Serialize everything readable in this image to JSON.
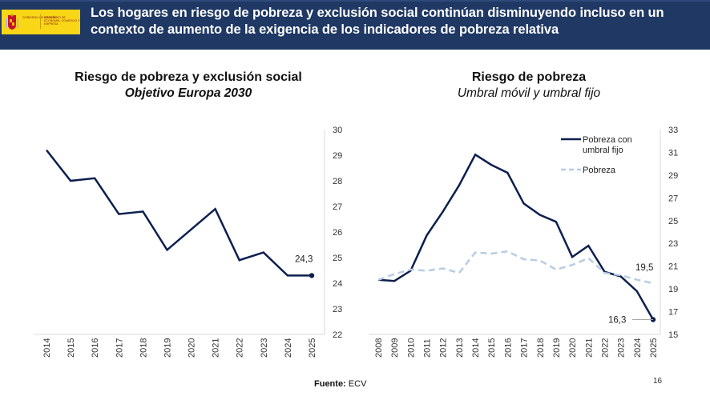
{
  "header": {
    "title": "Los hogares en riesgo de pobreza y exclusión social continúan disminuyendo incluso en un contexto de aumento de la exigencia de los indicadores de pobreza relativa",
    "logo": {
      "line1": "GOBIERNO DE ESPAÑA",
      "line2": "MINISTERIO DE ECONOMÍA, COMERCIO Y EMPRESA"
    },
    "colors": {
      "background": "#1f3864",
      "logo_yellow": "#f9d616"
    }
  },
  "footer": {
    "source_label": "Fuente:",
    "source_value": "ECV",
    "page_number": "16"
  },
  "chart_data": [
    {
      "type": "line",
      "title": "Riesgo de pobreza y exclusión social",
      "subtitle": "Objetivo Europa 2030",
      "xlabel": "",
      "ylabel": "",
      "x": [
        "2014",
        "2015",
        "2016",
        "2017",
        "2018",
        "2019",
        "2020",
        "2021",
        "2022",
        "2023",
        "2024",
        "2025"
      ],
      "series": [
        {
          "name": "Riesgo de pobreza y exclusión social",
          "color": "#0d1f4f",
          "style": "solid",
          "values": [
            29.2,
            28.0,
            28.1,
            26.7,
            26.8,
            25.3,
            26.1,
            26.9,
            24.9,
            25.2,
            24.3,
            24.3
          ]
        }
      ],
      "ylim": [
        22,
        30
      ],
      "yticks": [
        "22",
        "23",
        "24",
        "25",
        "26",
        "27",
        "28",
        "29",
        "30"
      ],
      "y_axis_side": "right",
      "grid": false,
      "legend": "none",
      "annotations": [
        {
          "x": "2025",
          "text": "24,3"
        }
      ]
    },
    {
      "type": "line",
      "title": "Riesgo de pobreza",
      "subtitle": "Umbral móvil y umbral fijo",
      "xlabel": "",
      "ylabel": "",
      "x": [
        "2008",
        "2009",
        "2010",
        "2011",
        "2012",
        "2013",
        "2014",
        "2015",
        "2016",
        "2017",
        "2018",
        "2019",
        "2020",
        "2021",
        "2022",
        "2023",
        "2024",
        "2025"
      ],
      "series": [
        {
          "name": "Pobreza con umbral fijo",
          "legend_lines": [
            "Pobreza con",
            "umbral fijo"
          ],
          "color": "#0d1f4f",
          "style": "solid",
          "values": [
            19.8,
            19.7,
            20.6,
            23.7,
            25.8,
            28.1,
            30.8,
            29.9,
            29.2,
            26.5,
            25.5,
            24.9,
            21.8,
            22.8,
            20.5,
            20.1,
            18.8,
            16.3
          ]
        },
        {
          "name": "Pobreza",
          "legend_lines": [
            "Pobreza"
          ],
          "color": "#b8cce4",
          "style": "dashed",
          "values": [
            19.8,
            20.3,
            20.7,
            20.6,
            20.8,
            20.4,
            22.2,
            22.1,
            22.3,
            21.6,
            21.5,
            20.7,
            21.1,
            21.7,
            20.4,
            20.2,
            19.8,
            19.5
          ]
        }
      ],
      "ylim": [
        15,
        33
      ],
      "yticks": [
        "15",
        "17",
        "19",
        "21",
        "23",
        "25",
        "27",
        "29",
        "31",
        "33"
      ],
      "y_axis_side": "right",
      "grid": false,
      "legend": "top-right",
      "annotations": [
        {
          "x": "2025",
          "series": "Pobreza",
          "text": "19,5"
        },
        {
          "x": "2025",
          "series": "Pobreza con umbral fijo",
          "text": "16,3"
        }
      ]
    }
  ]
}
